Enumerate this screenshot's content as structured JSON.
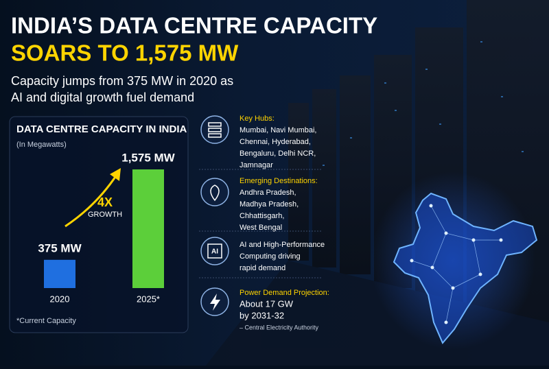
{
  "header": {
    "title_line1": "INDIA’S DATA CENTRE CAPACITY",
    "title_line2": "SOARS TO 1,575 MW",
    "subtitle_lines": [
      "Capacity jumps from 375 MW in 2020 as",
      "AI and digital growth fuel demand"
    ]
  },
  "chart_data": {
    "type": "bar",
    "title": "DATA CENTRE CAPACITY IN INDIA",
    "subtitle": "(In Megawatts)",
    "categories": [
      "2020",
      "2025*"
    ],
    "values": [
      375,
      1575
    ],
    "value_labels": [
      "375 MW",
      "1,575 MW"
    ],
    "colors": [
      "#1f6fe0",
      "#5ccf3a"
    ],
    "annotation": "4X",
    "annotation_sub": "GROWTH",
    "footnote": "*Current Capacity"
  },
  "info": [
    {
      "title": "Key Hubs:",
      "lines": [
        "Mumbai, Navi Mumbai,",
        "Chennai, Hyderabad,",
        "Bengaluru, Delhi NCR,",
        "Jamnagar"
      ]
    },
    {
      "title": "Emerging Destinations:",
      "lines": [
        "Andhra Pradesh,",
        "Madhya Pradesh,",
        "Chhattisgarh,",
        "West Bengal"
      ]
    },
    {
      "lines": [
        "AI and High-Performance",
        "Computing driving",
        "rapid demand"
      ],
      "icon_label": "AI"
    },
    {
      "title": "Power Demand Projection:",
      "lines": [
        "About 17 GW",
        "by 2031-32"
      ],
      "source": "– Central Electricity Authority"
    }
  ]
}
